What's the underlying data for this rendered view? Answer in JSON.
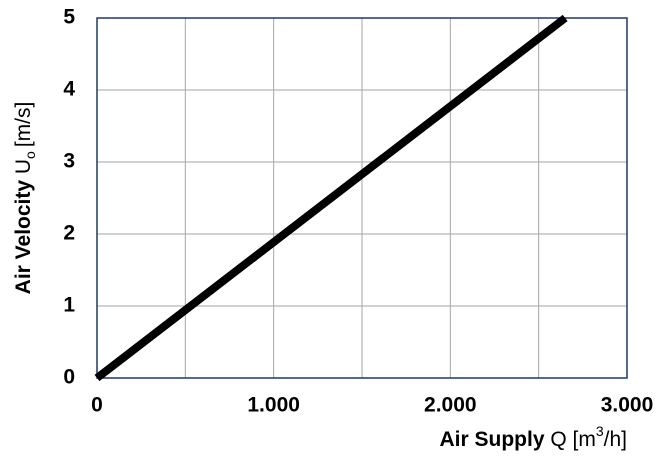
{
  "chart_data": {
    "type": "line",
    "xlabel": {
      "bold": "Air Supply",
      "normal": "Q [m",
      "sup": "3",
      "end": "/h]"
    },
    "ylabel": {
      "bold": "Air Velocity",
      "normal": "U",
      "sub": "o",
      "end": "[m/s]"
    },
    "x": [
      0,
      2650
    ],
    "series": [
      {
        "color": "#000000",
        "values": [
          0,
          5
        ]
      }
    ],
    "xlim": [
      0,
      3000
    ],
    "xticks": [
      0,
      {
        "value": 1000,
        "label": "1.000"
      },
      {
        "value": 2000,
        "label": "2.000"
      },
      {
        "value": 3000,
        "label": "3.000"
      }
    ],
    "minor_xticks": [
      500,
      1500,
      2500
    ],
    "ylim": [
      0,
      5
    ],
    "yticks": [
      0,
      1,
      2,
      3,
      4,
      5
    ],
    "grid": true
  }
}
